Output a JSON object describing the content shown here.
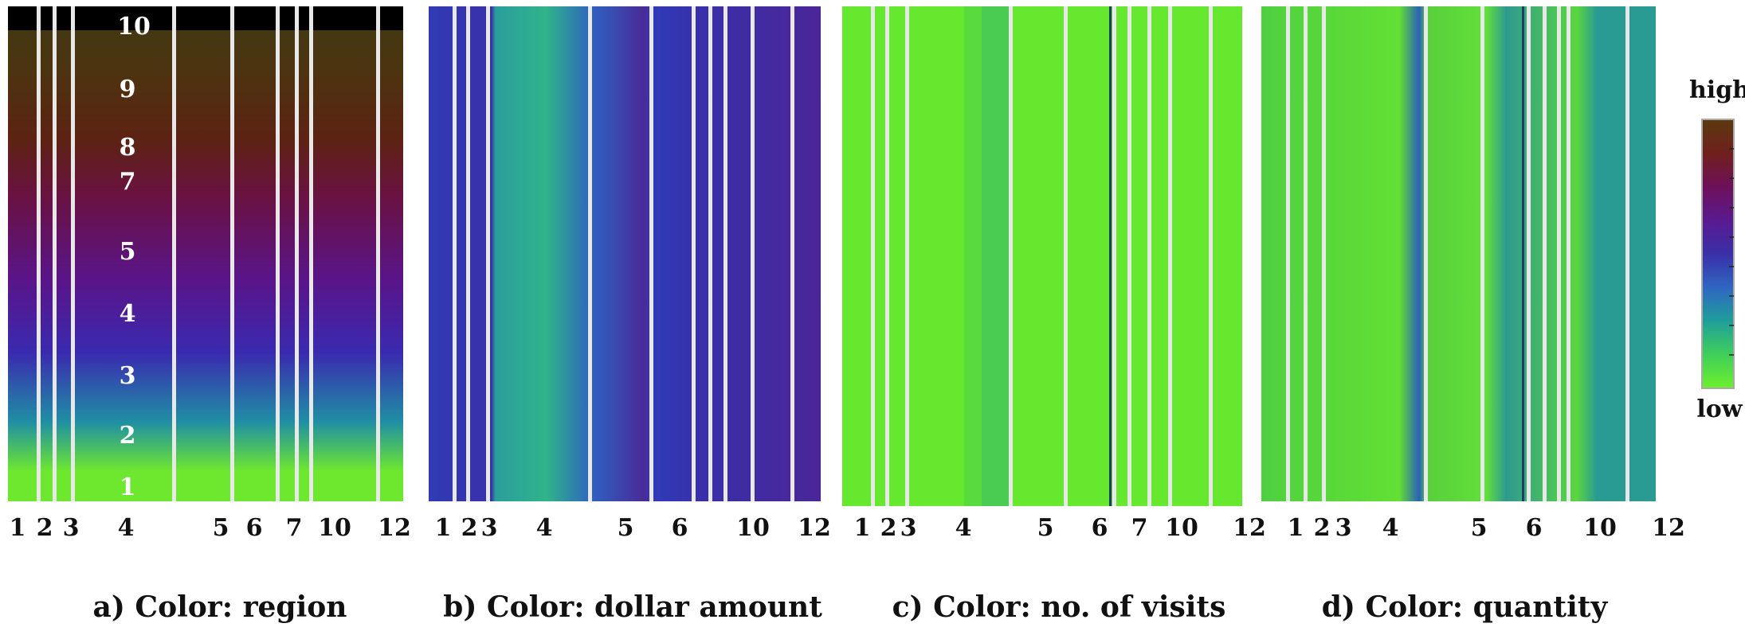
{
  "chart_data": [
    {
      "type": "heatmap",
      "caption": "a) Color: region",
      "x_tick_labels": [
        "1",
        "2",
        "3",
        "4",
        "5",
        "6",
        "7",
        "10",
        "12"
      ],
      "y_bands": [
        "1",
        "2",
        "3",
        "4",
        "5",
        "7",
        "8",
        "9",
        "10"
      ],
      "color_encodes": "region"
    },
    {
      "type": "heatmap",
      "caption": "b) Color: dollar amount",
      "x_tick_labels": [
        "1",
        "2",
        "3",
        "4",
        "5",
        "6",
        "10",
        "12"
      ],
      "color_encodes": "dollar amount"
    },
    {
      "type": "heatmap",
      "caption": "c) Color: no. of  visits",
      "x_tick_labels": [
        "1",
        "2",
        "3",
        "4",
        "5",
        "6",
        "7",
        "10",
        "12"
      ],
      "color_encodes": "no. of visits"
    },
    {
      "type": "heatmap",
      "caption": "d) Color: quantity",
      "x_tick_labels": [
        "1",
        "2",
        "3",
        "4",
        "5",
        "6",
        "10",
        "12"
      ],
      "color_encodes": "quantity"
    }
  ],
  "colorbar": {
    "high_label": "high",
    "low_label": "low",
    "colors": [
      "#6cf02a",
      "#3fcf5a",
      "#1f9f9a",
      "#2f66c2",
      "#3a2fa8",
      "#5a1a90",
      "#6e1058",
      "#70201c",
      "#5a3a10"
    ]
  }
}
